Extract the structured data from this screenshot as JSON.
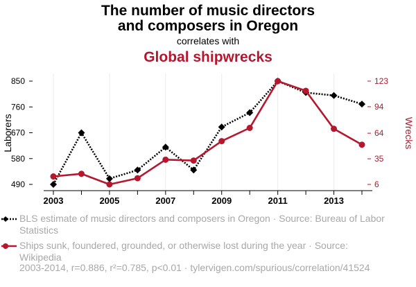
{
  "chart_data": {
    "type": "line",
    "title_line1": "The number of music directors",
    "title_line2": "and composers in Oregon",
    "correlates_text": "correlates with",
    "subtitle": "Global shipwrecks",
    "x": [
      2003,
      2004,
      2005,
      2006,
      2007,
      2008,
      2009,
      2010,
      2011,
      2012,
      2013,
      2014
    ],
    "x_tick_labels": [
      "2003",
      "2005",
      "2007",
      "2009",
      "2011",
      "2013"
    ],
    "y_left": {
      "label": "Laborers",
      "ticks": [
        "850",
        "760",
        "670",
        "580",
        "490"
      ],
      "range": [
        490,
        850
      ]
    },
    "y_right": {
      "label": "Wrecks",
      "ticks": [
        "123",
        "94",
        "64",
        "35",
        "6"
      ],
      "range": [
        6,
        123
      ]
    },
    "series": [
      {
        "name": "BLS estimate of music directors and composers in Oregon",
        "axis": "left",
        "color": "#000000",
        "style": "dotted",
        "marker": "diamond",
        "values": [
          490,
          670,
          510,
          540,
          620,
          540,
          690,
          740,
          850,
          810,
          800,
          770
        ]
      },
      {
        "name": "Ships sunk, foundered, grounded, or otherwise lost during the year",
        "axis": "right",
        "color": "#b5172e",
        "style": "solid",
        "marker": "circle",
        "values": [
          15,
          18,
          6,
          13,
          34,
          33,
          55,
          70,
          123,
          112,
          69,
          51
        ]
      }
    ],
    "grid": "vertical-at-year-ticks"
  },
  "legend": {
    "item1": "BLS estimate of music directors and composers in Oregon · Source: Bureau of Labor Statistics",
    "item2": "Ships sunk, foundered, grounded, or otherwise lost during the year · Source: Wikipedia"
  },
  "footer": "2003-2014, r=0.886, r²=0.785, p<0.01 · tylervigen.com/spurious/correlation/41524"
}
